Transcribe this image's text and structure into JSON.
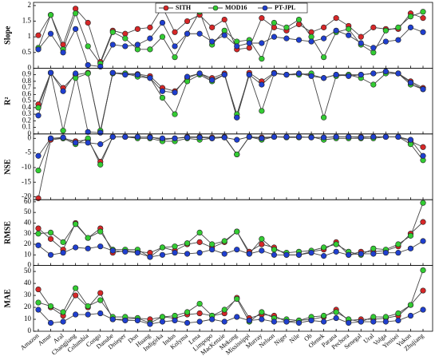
{
  "chart_data": [
    {
      "type": "line",
      "y_label": "Slope",
      "ylim": [
        0,
        2.1
      ],
      "yticks": [
        0,
        0.5,
        1,
        1.5,
        2
      ],
      "series": [
        {
          "name": "SITH",
          "color": "#d62728",
          "values": [
            1.05,
            1.7,
            0.75,
            1.9,
            1.45,
            0.2,
            1.2,
            1.1,
            1.25,
            1.3,
            1.95,
            1.15,
            1.5,
            1.7,
            1.3,
            1.55,
            0.6,
            0.65,
            1.6,
            1.3,
            1.2,
            1.4,
            1.15,
            1.3,
            1.6,
            1.35,
            1.0,
            1.3,
            1.25,
            1.25,
            1.75,
            1.6
          ]
        },
        {
          "name": "MOD16",
          "color": "#33cc33",
          "values": [
            0.65,
            1.7,
            0.6,
            1.75,
            0.7,
            0.15,
            1.15,
            0.95,
            0.6,
            0.6,
            1.0,
            0.35,
            1.1,
            1.8,
            0.75,
            1.2,
            0.85,
            0.9,
            0.3,
            1.45,
            1.3,
            1.55,
            1.0,
            0.35,
            1.15,
            1.25,
            0.75,
            0.5,
            1.2,
            1.3,
            1.65,
            1.8
          ]
        },
        {
          "name": "PT-JPL",
          "color": "#1f3fcf",
          "values": [
            0.6,
            1.1,
            0.5,
            1.25,
            0.1,
            0.05,
            0.75,
            0.7,
            0.75,
            0.95,
            1.45,
            0.7,
            1.1,
            1.1,
            0.85,
            1.05,
            0.7,
            0.8,
            0.8,
            1.0,
            0.95,
            0.9,
            0.85,
            0.95,
            1.2,
            1.05,
            0.8,
            0.65,
            0.85,
            0.9,
            1.3,
            1.15
          ]
        }
      ]
    },
    {
      "type": "line",
      "y_label": "R²",
      "ylim": [
        0,
        1
      ],
      "yticks": [
        0,
        0.1,
        0.2,
        0.3,
        0.4,
        0.5,
        0.6,
        0.7,
        0.8,
        0.9
      ],
      "series": [
        {
          "color": "#d62728",
          "values": [
            0.45,
            0.93,
            0.7,
            0.9,
            0.93,
            0.03,
            0.93,
            0.92,
            0.91,
            0.88,
            0.7,
            0.65,
            0.85,
            0.92,
            0.85,
            0.92,
            0.25,
            0.93,
            0.8,
            0.93,
            0.9,
            0.92,
            0.9,
            0.85,
            0.9,
            0.9,
            0.9,
            0.92,
            0.95,
            0.92,
            0.8,
            0.7
          ]
        },
        {
          "color": "#33cc33",
          "values": [
            0.4,
            0.93,
            0.05,
            0.85,
            0.92,
            0.05,
            0.92,
            0.92,
            0.87,
            0.85,
            0.55,
            0.3,
            0.8,
            0.9,
            0.8,
            0.9,
            0.3,
            0.9,
            0.35,
            0.92,
            0.9,
            0.9,
            0.92,
            0.25,
            0.88,
            0.9,
            0.85,
            0.75,
            0.92,
            0.92,
            0.75,
            0.68
          ]
        },
        {
          "color": "#1f3fcf",
          "values": [
            0.28,
            0.93,
            0.65,
            0.92,
            0.03,
            0.02,
            0.93,
            0.9,
            0.9,
            0.85,
            0.65,
            0.63,
            0.87,
            0.92,
            0.82,
            0.9,
            0.25,
            0.9,
            0.75,
            0.92,
            0.9,
            0.92,
            0.88,
            0.85,
            0.9,
            0.88,
            0.9,
            0.92,
            0.95,
            0.92,
            0.78,
            0.68
          ]
        }
      ]
    },
    {
      "type": "line",
      "y_label": "NSE",
      "ylim": [
        -21,
        1.5
      ],
      "yticks": [
        -20,
        -15,
        -10,
        -5,
        0
      ],
      "series": [
        {
          "color": "#d62728",
          "values": [
            -20.5,
            -0.5,
            0,
            -1,
            -0.5,
            -8,
            0.5,
            0.5,
            0.3,
            0.5,
            -0.5,
            0,
            0.5,
            0.5,
            0.3,
            0.5,
            -5.5,
            0.5,
            0.3,
            0.5,
            0.5,
            0.5,
            0.3,
            0.3,
            0.5,
            0.5,
            0.5,
            0.5,
            0.5,
            0.5,
            -1,
            -3
          ]
        },
        {
          "color": "#33cc33",
          "values": [
            -11,
            0,
            0,
            -2,
            0,
            -9,
            0.5,
            0.5,
            0,
            0,
            -1,
            -1,
            0,
            -0.5,
            0,
            0.3,
            -5.5,
            0.5,
            -0.5,
            0.5,
            0.3,
            0.3,
            0.5,
            -0.5,
            0,
            0,
            0,
            0,
            0.5,
            0.5,
            -2,
            -7.5
          ]
        },
        {
          "color": "#1f3fcf",
          "values": [
            -6,
            0,
            0.3,
            -1.5,
            -1.5,
            -2,
            0.5,
            0.5,
            0.5,
            0.3,
            0,
            0,
            0.3,
            0.3,
            0,
            0.3,
            -0.5,
            0.5,
            0,
            0.5,
            0.5,
            0.5,
            0.3,
            0.3,
            0.5,
            0.5,
            0.3,
            0.5,
            0.5,
            0.5,
            -0.5,
            -6
          ]
        }
      ]
    },
    {
      "type": "line",
      "y_label": "RMSE",
      "ylim": [
        0,
        62
      ],
      "yticks": [
        0,
        10,
        20,
        30,
        40,
        50,
        60
      ],
      "series": [
        {
          "color": "#d62728",
          "values": [
            35,
            25,
            15,
            40,
            26,
            35,
            12,
            14,
            13,
            12,
            17,
            14,
            20,
            22,
            17,
            22,
            32,
            13,
            20,
            17,
            10,
            10,
            13,
            15,
            22,
            10,
            13,
            13,
            14,
            18,
            30,
            41
          ]
        },
        {
          "color": "#33cc33",
          "values": [
            30,
            31,
            22,
            39,
            26,
            32,
            15,
            15,
            15,
            8,
            17,
            18,
            21,
            31,
            20,
            23,
            32,
            11,
            25,
            15,
            12,
            13,
            14,
            17,
            20,
            13,
            10,
            16,
            15,
            20,
            28,
            59
          ]
        },
        {
          "color": "#1f3fcf",
          "values": [
            19,
            10,
            12,
            17,
            16,
            18,
            14,
            13,
            12,
            8,
            10,
            12,
            11,
            12,
            15,
            11,
            15,
            11,
            14,
            10,
            10,
            10,
            12,
            9,
            13,
            10,
            11,
            11,
            12,
            12,
            16,
            23
          ]
        }
      ]
    },
    {
      "type": "line",
      "y_label": "MAE",
      "ylim": [
        0,
        55
      ],
      "yticks": [
        0,
        10,
        20,
        30,
        40,
        50
      ],
      "categories": [
        "Amazon",
        "Amur",
        "Aral",
        "Changjiang",
        "Columbia",
        "Congo",
        "Danube",
        "Dnieper",
        "Don",
        "Huang",
        "Indigirka",
        "Indus",
        "Kolyma",
        "Lena",
        "Limpopo",
        "MacKenzie",
        "Mekong",
        "Mississippi",
        "Murray",
        "Nelson",
        "Niger",
        "Nile",
        "Ob",
        "Olenek",
        "Parana",
        "Pechora",
        "Senegal",
        "Ural",
        "Volga",
        "Yenisei",
        "Yukon",
        "Zhujiang"
      ],
      "series": [
        {
          "color": "#d62728",
          "values": [
            35,
            20,
            13,
            30,
            20,
            32,
            10,
            10,
            11,
            10,
            12,
            11,
            14,
            15,
            13,
            15,
            28,
            11,
            14,
            13,
            8,
            9,
            10,
            12,
            18,
            9,
            10,
            10,
            11,
            13,
            22,
            34
          ]
        },
        {
          "color": "#33cc33",
          "values": [
            24,
            21,
            16,
            36,
            21,
            26,
            12,
            12,
            11,
            7,
            12,
            13,
            16,
            23,
            13,
            18,
            27,
            8,
            16,
            11,
            10,
            9,
            12,
            13,
            16,
            10,
            8,
            12,
            12,
            15,
            22,
            51
          ]
        },
        {
          "color": "#1f3fcf",
          "values": [
            18,
            7,
            8,
            14,
            14,
            15,
            10,
            9,
            9,
            6,
            8,
            9,
            7,
            8,
            10,
            8,
            12,
            9,
            10,
            8,
            8,
            7,
            9,
            8,
            11,
            7,
            8,
            8,
            8,
            9,
            13,
            18
          ]
        }
      ]
    }
  ]
}
